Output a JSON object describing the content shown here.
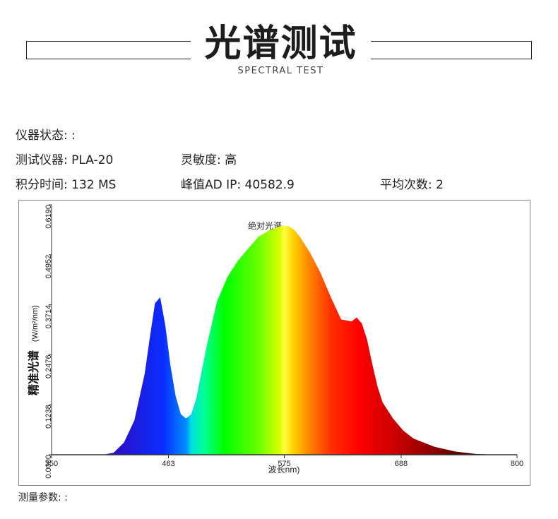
{
  "header": {
    "title": "光谱测试",
    "subtitle": "SPECTRAL TEST"
  },
  "info": {
    "instrument_status": "仪器状态: :",
    "instrument": "测试仪器: PLA-20",
    "sensitivity": "灵敏度: 高",
    "integration_time": "积分时间:  132 MS",
    "peak_ad": "峰值AD IP:   40582.9",
    "average_count": "平均次数: 2"
  },
  "chart_data": {
    "type": "area",
    "title": "绝对光谱",
    "ylabel_bold": "精准光谱",
    "ylabel_unit": "(W/m²/nm)",
    "xlabel": "波长nm)",
    "xlim": [
      350,
      800
    ],
    "ylim": [
      0,
      0.619
    ],
    "x_ticks": [
      "350",
      "463",
      "575",
      "688",
      "800"
    ],
    "y_ticks": [
      "0.0000",
      "0.1238",
      "0.2476",
      "0.3714",
      "0.4952",
      "0.6190"
    ],
    "grid": false,
    "x": [
      350,
      400,
      410,
      420,
      430,
      440,
      445,
      450,
      455,
      460,
      465,
      470,
      475,
      480,
      485,
      490,
      500,
      510,
      520,
      530,
      540,
      550,
      560,
      570,
      575,
      580,
      585,
      590,
      595,
      600,
      610,
      620,
      630,
      640,
      645,
      650,
      655,
      660,
      665,
      670,
      680,
      690,
      700,
      720,
      740,
      760,
      780,
      800
    ],
    "y": [
      0.0,
      0.0,
      0.005,
      0.03,
      0.085,
      0.2,
      0.29,
      0.375,
      0.39,
      0.32,
      0.22,
      0.145,
      0.1,
      0.09,
      0.1,
      0.14,
      0.27,
      0.38,
      0.44,
      0.48,
      0.51,
      0.54,
      0.555,
      0.565,
      0.568,
      0.565,
      0.556,
      0.54,
      0.52,
      0.5,
      0.45,
      0.39,
      0.335,
      0.33,
      0.34,
      0.325,
      0.285,
      0.225,
      0.17,
      0.13,
      0.09,
      0.06,
      0.04,
      0.02,
      0.008,
      0.002,
      0.0,
      0.0
    ]
  },
  "footer": {
    "measure_params": "测量参数: :"
  }
}
